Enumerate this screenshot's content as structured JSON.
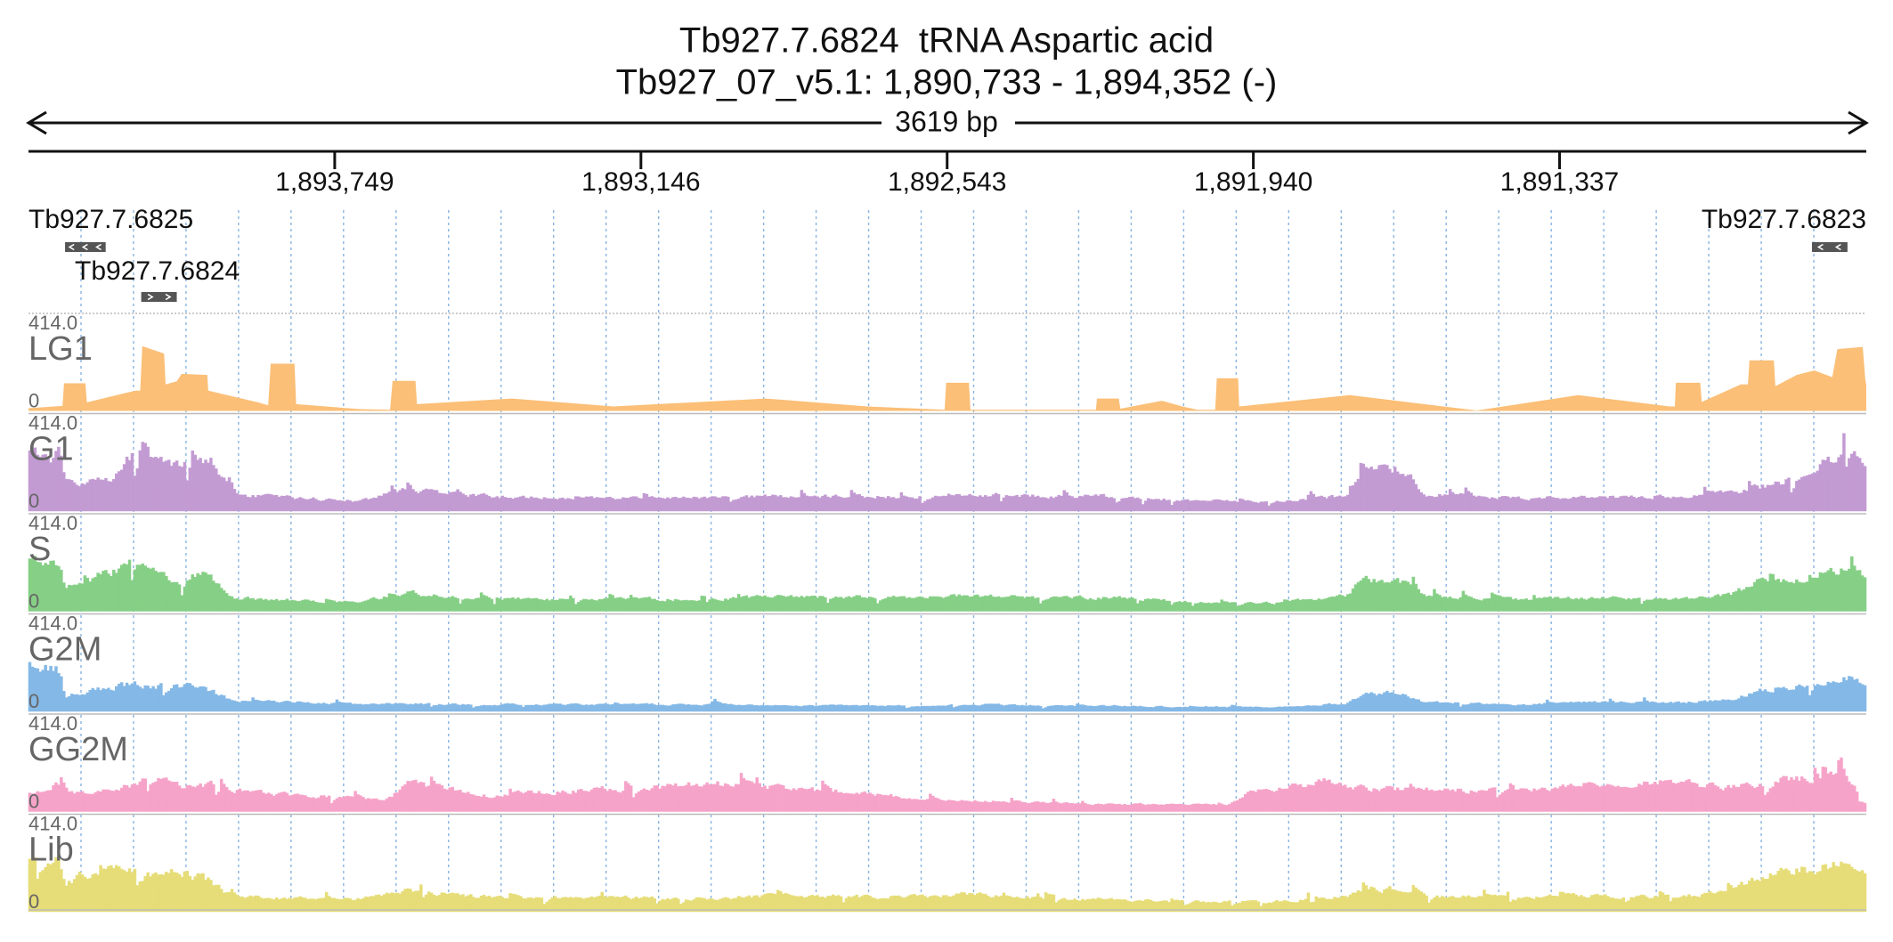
{
  "header": {
    "title": "Tb927.7.6824  tRNA Aspartic acid",
    "location": "Tb927_07_v5.1: 1,890,733 - 1,894,352 (-)",
    "span_label": "3619 bp"
  },
  "colors": {
    "LG1": "#fbbf77",
    "G1": "#c39bd3",
    "S": "#86cf86",
    "G2M": "#84b8e6",
    "GG2M": "#f6a3c9",
    "Lib": "#e6dd78",
    "gene_box": "#555555",
    "text": "#111111",
    "track_label": "#666666",
    "grid": "#8ab4e0"
  },
  "icons": {
    "axis_arrows": "double-arrow-icon",
    "strand_arrows": "chevron-strand-icon"
  },
  "chart_data": {
    "type": "area",
    "title": "Tb927.7.6824  tRNA Aspartic acid",
    "subtitle": "Tb927_07_v5.1: 1,890,733 - 1,894,352 (-)",
    "x_axis": {
      "orientation": "reverse strand (-)",
      "range": [
        1894352,
        1890733
      ],
      "span_label": "3619 bp",
      "ticks": [
        {
          "value": 1893749,
          "label": "1,893,749"
        },
        {
          "value": 1893146,
          "label": "1,893,146"
        },
        {
          "value": 1892543,
          "label": "1,892,543"
        },
        {
          "value": 1891940,
          "label": "1,891,940"
        },
        {
          "value": 1891337,
          "label": "1,891,337"
        }
      ]
    },
    "genes": [
      {
        "name": "Tb927.7.6825",
        "start": 1894280,
        "end": 1894200,
        "strand": "-",
        "label_row": 0
      },
      {
        "name": "Tb927.7.6824",
        "start": 1894130,
        "end": 1894060,
        "strand": "+",
        "label_row": 1
      },
      {
        "name": "Tb927.7.6823",
        "start": 1890840,
        "end": 1890770,
        "strand": "-",
        "label_row": 0
      }
    ],
    "y_range": [
      0,
      414.0
    ],
    "y_max_label": "414.0",
    "y_min_label": "0",
    "tracks": [
      {
        "name": "LG1",
        "style": "smooth",
        "points": [
          [
            1894352,
            12
          ],
          [
            1894285,
            22
          ],
          [
            1894282,
            123
          ],
          [
            1894240,
            123
          ],
          [
            1894237,
            38
          ],
          [
            1894160,
            80
          ],
          [
            1894140,
            90
          ],
          [
            1894132,
            90
          ],
          [
            1894128,
            288
          ],
          [
            1894085,
            255
          ],
          [
            1894082,
            118
          ],
          [
            1894060,
            132
          ],
          [
            1894050,
            165
          ],
          [
            1894000,
            160
          ],
          [
            1893998,
            90
          ],
          [
            1893900,
            38
          ],
          [
            1893880,
            25
          ],
          [
            1893875,
            210
          ],
          [
            1893828,
            210
          ],
          [
            1893825,
            30
          ],
          [
            1893700,
            8
          ],
          [
            1893640,
            5
          ],
          [
            1893635,
            134
          ],
          [
            1893590,
            134
          ],
          [
            1893587,
            30
          ],
          [
            1893400,
            55
          ],
          [
            1893200,
            20
          ],
          [
            1892900,
            55
          ],
          [
            1892700,
            20
          ],
          [
            1892548,
            5
          ],
          [
            1892545,
            125
          ],
          [
            1892500,
            125
          ],
          [
            1892497,
            5
          ],
          [
            1892300,
            5
          ],
          [
            1892250,
            5
          ],
          [
            1892248,
            55
          ],
          [
            1892205,
            55
          ],
          [
            1892202,
            10
          ],
          [
            1892120,
            45
          ],
          [
            1892080,
            20
          ],
          [
            1892050,
            5
          ],
          [
            1892015,
            5
          ],
          [
            1892012,
            145
          ],
          [
            1891970,
            145
          ],
          [
            1891968,
            20
          ],
          [
            1891750,
            70
          ],
          [
            1891500,
            2
          ],
          [
            1891300,
            70
          ],
          [
            1891120,
            20
          ],
          [
            1891110,
            20
          ],
          [
            1891108,
            125
          ],
          [
            1891060,
            125
          ],
          [
            1891057,
            40
          ],
          [
            1890980,
            118
          ],
          [
            1890966,
            118
          ],
          [
            1890963,
            225
          ],
          [
            1890915,
            225
          ],
          [
            1890912,
            110
          ],
          [
            1890870,
            160
          ],
          [
            1890835,
            180
          ],
          [
            1890800,
            150
          ],
          [
            1890790,
            275
          ],
          [
            1890740,
            285
          ],
          [
            1890735,
            140
          ],
          [
            1890733,
            115
          ]
        ]
      },
      {
        "name": "G1",
        "style": "bars",
        "seed": 11,
        "envelope": [
          [
            1894352,
            270
          ],
          [
            1894290,
            250
          ],
          [
            1894280,
            120
          ],
          [
            1894180,
            155
          ],
          [
            1894130,
            300
          ],
          [
            1894110,
            245
          ],
          [
            1894050,
            195
          ],
          [
            1894010,
            225
          ],
          [
            1893940,
            70
          ],
          [
            1893800,
            55
          ],
          [
            1893700,
            45
          ],
          [
            1893600,
            95
          ],
          [
            1893560,
            85
          ],
          [
            1893500,
            70
          ],
          [
            1893300,
            55
          ],
          [
            1893000,
            60
          ],
          [
            1892850,
            65
          ],
          [
            1892600,
            62
          ],
          [
            1892520,
            75
          ],
          [
            1892350,
            65
          ],
          [
            1892200,
            65
          ],
          [
            1892100,
            50
          ],
          [
            1891900,
            40
          ],
          [
            1891750,
            70
          ],
          [
            1891720,
            165
          ],
          [
            1891650,
            195
          ],
          [
            1891600,
            75
          ],
          [
            1891400,
            55
          ],
          [
            1891320,
            65
          ],
          [
            1891100,
            60
          ],
          [
            1891000,
            80
          ],
          [
            1890900,
            125
          ],
          [
            1890850,
            180
          ],
          [
            1890790,
            220
          ],
          [
            1890760,
            260
          ],
          [
            1890733,
            180
          ]
        ]
      },
      {
        "name": "S",
        "style": "bars",
        "seed": 23,
        "envelope": [
          [
            1894352,
            235
          ],
          [
            1894290,
            195
          ],
          [
            1894280,
            95
          ],
          [
            1894200,
            165
          ],
          [
            1894150,
            215
          ],
          [
            1894100,
            175
          ],
          [
            1894050,
            135
          ],
          [
            1894000,
            175
          ],
          [
            1893950,
            60
          ],
          [
            1893800,
            45
          ],
          [
            1893700,
            40
          ],
          [
            1893600,
            85
          ],
          [
            1893560,
            70
          ],
          [
            1893500,
            60
          ],
          [
            1893300,
            50
          ],
          [
            1893000,
            55
          ],
          [
            1892900,
            65
          ],
          [
            1892600,
            60
          ],
          [
            1892520,
            70
          ],
          [
            1892350,
            60
          ],
          [
            1892200,
            60
          ],
          [
            1892100,
            45
          ],
          [
            1891900,
            35
          ],
          [
            1891760,
            70
          ],
          [
            1891720,
            140
          ],
          [
            1891650,
            130
          ],
          [
            1891600,
            65
          ],
          [
            1891400,
            50
          ],
          [
            1891320,
            60
          ],
          [
            1891100,
            55
          ],
          [
            1891000,
            70
          ],
          [
            1890940,
            135
          ],
          [
            1890870,
            145
          ],
          [
            1890800,
            185
          ],
          [
            1890760,
            210
          ],
          [
            1890733,
            150
          ]
        ]
      },
      {
        "name": "G2M",
        "style": "bars",
        "seed": 37,
        "envelope": [
          [
            1894352,
            220
          ],
          [
            1894290,
            180
          ],
          [
            1894280,
            70
          ],
          [
            1894150,
            120
          ],
          [
            1894080,
            110
          ],
          [
            1894020,
            120
          ],
          [
            1893950,
            45
          ],
          [
            1893800,
            40
          ],
          [
            1893700,
            30
          ],
          [
            1893600,
            35
          ],
          [
            1893450,
            30
          ],
          [
            1893300,
            30
          ],
          [
            1893000,
            30
          ],
          [
            1892900,
            25
          ],
          [
            1892600,
            25
          ],
          [
            1892500,
            30
          ],
          [
            1892350,
            25
          ],
          [
            1892200,
            25
          ],
          [
            1892100,
            20
          ],
          [
            1891900,
            20
          ],
          [
            1891760,
            35
          ],
          [
            1891720,
            75
          ],
          [
            1891650,
            85
          ],
          [
            1891600,
            40
          ],
          [
            1891400,
            30
          ],
          [
            1891320,
            40
          ],
          [
            1891100,
            40
          ],
          [
            1891000,
            50
          ],
          [
            1890940,
            95
          ],
          [
            1890870,
            115
          ],
          [
            1890820,
            130
          ],
          [
            1890770,
            155
          ],
          [
            1890733,
            110
          ]
        ]
      },
      {
        "name": "GG2M",
        "style": "bars",
        "seed": 53,
        "envelope": [
          [
            1894352,
            80
          ],
          [
            1894300,
            125
          ],
          [
            1894260,
            80
          ],
          [
            1894150,
            110
          ],
          [
            1894110,
            150
          ],
          [
            1894050,
            120
          ],
          [
            1893990,
            115
          ],
          [
            1893900,
            80
          ],
          [
            1893800,
            70
          ],
          [
            1893700,
            60
          ],
          [
            1893650,
            45
          ],
          [
            1893600,
            125
          ],
          [
            1893560,
            110
          ],
          [
            1893500,
            90
          ],
          [
            1893450,
            70
          ],
          [
            1893300,
            90
          ],
          [
            1893000,
            120
          ],
          [
            1892900,
            110
          ],
          [
            1892800,
            95
          ],
          [
            1892600,
            60
          ],
          [
            1892500,
            50
          ],
          [
            1892300,
            35
          ],
          [
            1892100,
            30
          ],
          [
            1891990,
            30
          ],
          [
            1891950,
            80
          ],
          [
            1891800,
            130
          ],
          [
            1891700,
            100
          ],
          [
            1891600,
            95
          ],
          [
            1891400,
            90
          ],
          [
            1891300,
            120
          ],
          [
            1891100,
            130
          ],
          [
            1891000,
            110
          ],
          [
            1890900,
            140
          ],
          [
            1890800,
            160
          ],
          [
            1890760,
            120
          ],
          [
            1890733,
            30
          ]
        ]
      },
      {
        "name": "Lib",
        "style": "bars",
        "seed": 71,
        "envelope": [
          [
            1894352,
            235
          ],
          [
            1894290,
            220
          ],
          [
            1894280,
            115
          ],
          [
            1894200,
            215
          ],
          [
            1894150,
            185
          ],
          [
            1894110,
            165
          ],
          [
            1894050,
            175
          ],
          [
            1894000,
            145
          ],
          [
            1893950,
            70
          ],
          [
            1893800,
            60
          ],
          [
            1893700,
            55
          ],
          [
            1893600,
            100
          ],
          [
            1893560,
            85
          ],
          [
            1893500,
            70
          ],
          [
            1893300,
            60
          ],
          [
            1893000,
            60
          ],
          [
            1892900,
            70
          ],
          [
            1892600,
            65
          ],
          [
            1892520,
            80
          ],
          [
            1892350,
            60
          ],
          [
            1892200,
            55
          ],
          [
            1892100,
            45
          ],
          [
            1891900,
            45
          ],
          [
            1891760,
            65
          ],
          [
            1891720,
            100
          ],
          [
            1891650,
            100
          ],
          [
            1891600,
            70
          ],
          [
            1891400,
            60
          ],
          [
            1891320,
            70
          ],
          [
            1891100,
            65
          ],
          [
            1891000,
            90
          ],
          [
            1890940,
            160
          ],
          [
            1890870,
            180
          ],
          [
            1890800,
            200
          ],
          [
            1890760,
            230
          ],
          [
            1890733,
            150
          ]
        ]
      }
    ]
  }
}
